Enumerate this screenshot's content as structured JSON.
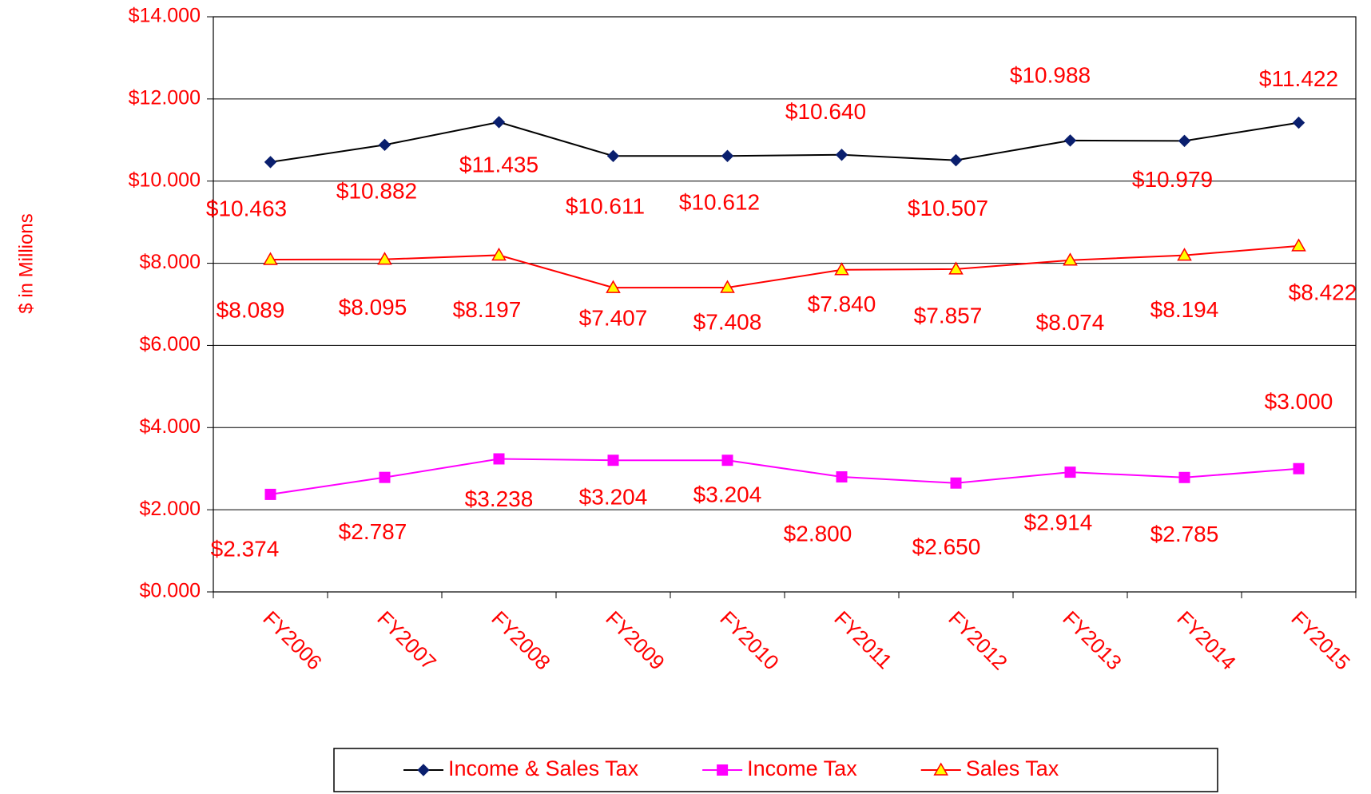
{
  "chart_data": {
    "type": "line",
    "y_label": "$ in Millions",
    "categories": [
      "FY2006",
      "FY2007",
      "FY2008",
      "FY2009",
      "FY2010",
      "FY2011",
      "FY2012",
      "FY2013",
      "FY2014",
      "FY2015"
    ],
    "series": [
      {
        "name": "Income & Sales Tax",
        "color": "#000000",
        "marker_color": "#0a1f6e",
        "marker": "diamond",
        "values": [
          10.463,
          10.882,
          11.435,
          10.611,
          10.612,
          10.64,
          10.507,
          10.988,
          10.979,
          11.422
        ],
        "value_labels": [
          "$10.463",
          "$10.882",
          "$11.435",
          "$10.611",
          "$10.612",
          "$10.640",
          "$10.507",
          "$10.988",
          "$10.979",
          "$11.422"
        ]
      },
      {
        "name": "Income Tax",
        "color": "#ff00ff",
        "marker_color": "#ff00ff",
        "marker": "square",
        "values": [
          2.374,
          2.787,
          3.238,
          3.204,
          3.204,
          2.8,
          2.65,
          2.914,
          2.785,
          3.0
        ],
        "value_labels": [
          "$2.374",
          "$2.787",
          "$3.238",
          "$3.204",
          "$3.204",
          "$2.800",
          "$2.650",
          "$2.914",
          "$2.785",
          "$3.000"
        ]
      },
      {
        "name": "Sales Tax",
        "color": "#ff0000",
        "marker_color": "#ffff00",
        "marker": "triangle",
        "values": [
          8.089,
          8.095,
          8.197,
          7.407,
          7.408,
          7.84,
          7.857,
          8.074,
          8.194,
          8.422
        ],
        "value_labels": [
          "$8.089",
          "$8.095",
          "$8.197",
          "$7.407",
          "$7.408",
          "$7.840",
          "$7.857",
          "$8.074",
          "$8.194",
          "$8.422"
        ]
      }
    ],
    "ylim": [
      0,
      14
    ],
    "yticks": [
      {
        "value": 0,
        "label": "$0.000"
      },
      {
        "value": 2,
        "label": "$2.000"
      },
      {
        "value": 4,
        "label": "$4.000"
      },
      {
        "value": 6,
        "label": "$6.000"
      },
      {
        "value": 8,
        "label": "$8.000"
      },
      {
        "value": 10,
        "label": "$10.000"
      },
      {
        "value": 12,
        "label": "$12.000"
      },
      {
        "value": 14,
        "label": "$14.000"
      }
    ],
    "grid": true,
    "legend": "bottom"
  }
}
